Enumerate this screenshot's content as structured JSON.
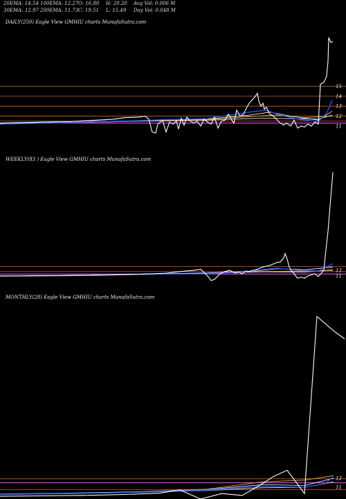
{
  "header": {
    "row1": [
      "20EMA: 14.54",
      "100EMA: 12.27",
      "O: 16.80",
      "H: 20.20",
      "Avg Vol: 0.006  M"
    ],
    "row2": [
      "30EMA: 12.97",
      "200EMA: 11.73",
      "C: 19.51",
      "L: 15.49",
      "Day Vol: 0.048  M"
    ]
  },
  "colors": {
    "background": "#000000",
    "price": "#ffffff",
    "ema_short": "#1e50ff",
    "ema_mid": "#ffffff",
    "ema_long": "#c8c8c8",
    "ema_gold": "#d7a032",
    "level_line": "#c86428",
    "support_line": "#ff50ff",
    "blue_line": "#5a8cff"
  },
  "chart_data": [
    {
      "type": "line",
      "title": "DAILY(250) Eagle   View  GMHIU charts MunafaSutra.com",
      "y_ticks": [
        15,
        14,
        13,
        12,
        11
      ],
      "ylim": [
        8.7,
        20.6
      ],
      "x_count": 250,
      "price": [
        [
          0,
          11.3
        ],
        [
          30,
          11.35
        ],
        [
          60,
          11.4
        ],
        [
          100,
          11.45
        ],
        [
          140,
          11.6
        ],
        [
          165,
          11.7
        ],
        [
          180,
          11.85
        ],
        [
          200,
          11.9
        ],
        [
          210,
          12.0
        ],
        [
          215,
          11.7
        ],
        [
          220,
          10.4
        ],
        [
          225,
          10.3
        ],
        [
          228,
          11.2
        ],
        [
          235,
          11.6
        ],
        [
          240,
          10.4
        ],
        [
          245,
          11.4
        ],
        [
          250,
          11.2
        ],
        [
          255,
          11.5
        ],
        [
          258,
          10.7
        ],
        [
          262,
          11.8
        ],
        [
          266,
          11.1
        ],
        [
          270,
          11.9
        ],
        [
          275,
          11.5
        ],
        [
          280,
          11.3
        ],
        [
          285,
          11.5
        ],
        [
          290,
          11.0
        ],
        [
          295,
          11.7
        ],
        [
          300,
          11.4
        ],
        [
          305,
          11.2
        ],
        [
          310,
          11.9
        ],
        [
          315,
          10.8
        ],
        [
          320,
          11.5
        ],
        [
          325,
          11.6
        ],
        [
          330,
          12.2
        ],
        [
          335,
          11.6
        ],
        [
          338,
          11.3
        ],
        [
          342,
          12.6
        ],
        [
          347,
          12.0
        ],
        [
          352,
          12.2
        ],
        [
          356,
          12.8
        ],
        [
          360,
          13.3
        ],
        [
          364,
          13.6
        ],
        [
          368,
          13.9
        ],
        [
          372,
          14.3
        ],
        [
          374,
          13.5
        ],
        [
          377,
          13.0
        ],
        [
          380,
          13.3
        ],
        [
          382,
          12.7
        ],
        [
          385,
          12.9
        ],
        [
          388,
          12.4
        ],
        [
          390,
          12.2
        ],
        [
          393,
          12.1
        ],
        [
          398,
          11.8
        ],
        [
          405,
          11.3
        ],
        [
          410,
          11.1
        ],
        [
          414,
          11.3
        ],
        [
          420,
          11.0
        ],
        [
          425,
          11.6
        ],
        [
          430,
          10.8
        ],
        [
          435,
          11.0
        ],
        [
          440,
          10.9
        ],
        [
          445,
          11.2
        ],
        [
          450,
          11.0
        ],
        [
          455,
          11.4
        ],
        [
          460,
          11.2
        ],
        [
          463,
          15.2
        ],
        [
          468,
          15.4
        ],
        [
          472,
          16.0
        ],
        [
          474,
          17.5
        ],
        [
          475,
          19.9
        ],
        [
          478,
          19.4
        ],
        [
          481,
          19.5
        ]
      ],
      "ema_short": [
        [
          0,
          11.2
        ],
        [
          100,
          11.35
        ],
        [
          200,
          11.55
        ],
        [
          240,
          11.65
        ],
        [
          300,
          11.75
        ],
        [
          360,
          12.4
        ],
        [
          385,
          12.6
        ],
        [
          400,
          12.2
        ],
        [
          430,
          11.7
        ],
        [
          460,
          11.45
        ],
        [
          472,
          12.3
        ],
        [
          480,
          13.6
        ]
      ],
      "ema_mid": [
        [
          0,
          11.25
        ],
        [
          100,
          11.38
        ],
        [
          200,
          11.55
        ],
        [
          300,
          11.7
        ],
        [
          360,
          12.1
        ],
        [
          390,
          12.4
        ],
        [
          420,
          12.0
        ],
        [
          460,
          11.6
        ],
        [
          480,
          12.5
        ]
      ],
      "ema_long": [
        [
          0,
          11.2
        ],
        [
          100,
          11.35
        ],
        [
          200,
          11.5
        ],
        [
          300,
          11.6
        ],
        [
          380,
          11.8
        ],
        [
          420,
          11.75
        ],
        [
          460,
          11.7
        ],
        [
          480,
          12.1
        ]
      ],
      "ema_gold": [
        [
          0,
          11.22
        ],
        [
          100,
          11.35
        ],
        [
          200,
          11.5
        ],
        [
          300,
          11.65
        ],
        [
          370,
          12.0
        ],
        [
          400,
          12.1
        ],
        [
          440,
          11.85
        ],
        [
          480,
          12.0
        ]
      ],
      "support_level": 11.3,
      "level_lines": [
        15,
        14,
        13,
        12,
        11.5
      ]
    },
    {
      "type": "line",
      "title": "WEEKLY(83                          ) Eagle   View  GMHIU charts MunafaSutra.com",
      "y_ticks": [
        12,
        11
      ],
      "ylim": [
        9.3,
        30.3
      ],
      "x_count": 83,
      "price": [
        [
          0,
          11.0
        ],
        [
          50,
          11.05
        ],
        [
          100,
          11.1
        ],
        [
          150,
          11.15
        ],
        [
          200,
          11.3
        ],
        [
          240,
          11.5
        ],
        [
          260,
          11.8
        ],
        [
          280,
          12.0
        ],
        [
          290,
          12.2
        ],
        [
          300,
          11.0
        ],
        [
          305,
          10.2
        ],
        [
          310,
          10.4
        ],
        [
          318,
          11.4
        ],
        [
          325,
          11.8
        ],
        [
          332,
          12.0
        ],
        [
          340,
          11.5
        ],
        [
          345,
          11.7
        ],
        [
          350,
          11.4
        ],
        [
          355,
          11.9
        ],
        [
          360,
          11.8
        ],
        [
          365,
          12.0
        ],
        [
          370,
          12.1
        ],
        [
          380,
          12.6
        ],
        [
          390,
          12.9
        ],
        [
          400,
          13.4
        ],
        [
          405,
          13.5
        ],
        [
          410,
          14.2
        ],
        [
          412,
          15.0
        ],
        [
          415,
          14.0
        ],
        [
          418,
          12.6
        ],
        [
          420,
          12.1
        ],
        [
          425,
          11.4
        ],
        [
          430,
          10.6
        ],
        [
          435,
          10.8
        ],
        [
          440,
          10.6
        ],
        [
          445,
          11.0
        ],
        [
          450,
          11.2
        ],
        [
          455,
          11.4
        ],
        [
          460,
          10.9
        ],
        [
          465,
          11.6
        ],
        [
          468,
          12.0
        ],
        [
          470,
          14.5
        ],
        [
          474,
          19.0
        ],
        [
          478,
          25.0
        ],
        [
          481,
          29.5
        ]
      ],
      "ema_short": [
        [
          0,
          10.95
        ],
        [
          100,
          11.05
        ],
        [
          200,
          11.3
        ],
        [
          300,
          11.4
        ],
        [
          350,
          11.7
        ],
        [
          400,
          12.4
        ],
        [
          430,
          12.0
        ],
        [
          460,
          11.9
        ],
        [
          481,
          13.2
        ]
      ],
      "ema_mid": [
        [
          0,
          11.0
        ],
        [
          100,
          11.1
        ],
        [
          200,
          11.35
        ],
        [
          300,
          11.55
        ],
        [
          370,
          11.9
        ],
        [
          400,
          12.3
        ],
        [
          440,
          12.1
        ],
        [
          481,
          12.6
        ]
      ],
      "ema_long": [
        [
          0,
          11.0
        ],
        [
          100,
          11.1
        ],
        [
          200,
          11.3
        ],
        [
          300,
          11.5
        ],
        [
          380,
          11.75
        ],
        [
          440,
          11.7
        ],
        [
          481,
          12.1
        ]
      ],
      "ema_gold": [
        [
          0,
          11.0
        ],
        [
          100,
          11.1
        ],
        [
          200,
          11.3
        ],
        [
          300,
          11.5
        ],
        [
          380,
          11.8
        ],
        [
          430,
          11.85
        ],
        [
          481,
          12.0
        ]
      ],
      "support_level": 11.35,
      "level_lines": [
        12.7,
        11.8
      ]
    },
    {
      "type": "line",
      "title": "MONTHLY(28) Eagle   View  GMHIU charts MunafaSutra.com",
      "y_ticks": [
        12,
        11
      ],
      "ylim": [
        9.7,
        31.2
      ],
      "x_count": 28,
      "price": [
        [
          0,
          10.0
        ],
        [
          60,
          10.05
        ],
        [
          120,
          10.1
        ],
        [
          180,
          10.2
        ],
        [
          230,
          10.35
        ],
        [
          260,
          10.7
        ],
        [
          290,
          9.7
        ],
        [
          320,
          10.3
        ],
        [
          350,
          10.1
        ],
        [
          375,
          11.2
        ],
        [
          395,
          12.2
        ],
        [
          415,
          12.9
        ],
        [
          440,
          10.3
        ],
        [
          458,
          30.0
        ],
        [
          482,
          28.4
        ],
        [
          498,
          27.5
        ]
      ],
      "ema_short": [
        [
          0,
          10.2
        ],
        [
          100,
          10.3
        ],
        [
          200,
          10.45
        ],
        [
          300,
          10.7
        ],
        [
          380,
          11.1
        ],
        [
          440,
          11.0
        ],
        [
          470,
          11.4
        ],
        [
          482,
          12.2
        ]
      ],
      "ema_mid": [
        [
          0,
          10.25
        ],
        [
          100,
          10.35
        ],
        [
          200,
          10.5
        ],
        [
          300,
          10.75
        ],
        [
          380,
          11.3
        ],
        [
          440,
          11.2
        ],
        [
          482,
          12.0
        ]
      ],
      "ema_long": [
        [
          0,
          10.2
        ],
        [
          100,
          10.3
        ],
        [
          200,
          10.45
        ],
        [
          300,
          10.65
        ],
        [
          380,
          10.95
        ],
        [
          440,
          11.0
        ],
        [
          482,
          11.6
        ]
      ],
      "ema_gold": [
        [
          0,
          10.25
        ],
        [
          100,
          10.35
        ],
        [
          200,
          10.5
        ],
        [
          300,
          10.8
        ],
        [
          380,
          11.6
        ],
        [
          440,
          11.8
        ],
        [
          482,
          12.3
        ]
      ],
      "support_level": 11.5,
      "level_lines": [
        11.95,
        10.75
      ]
    }
  ]
}
